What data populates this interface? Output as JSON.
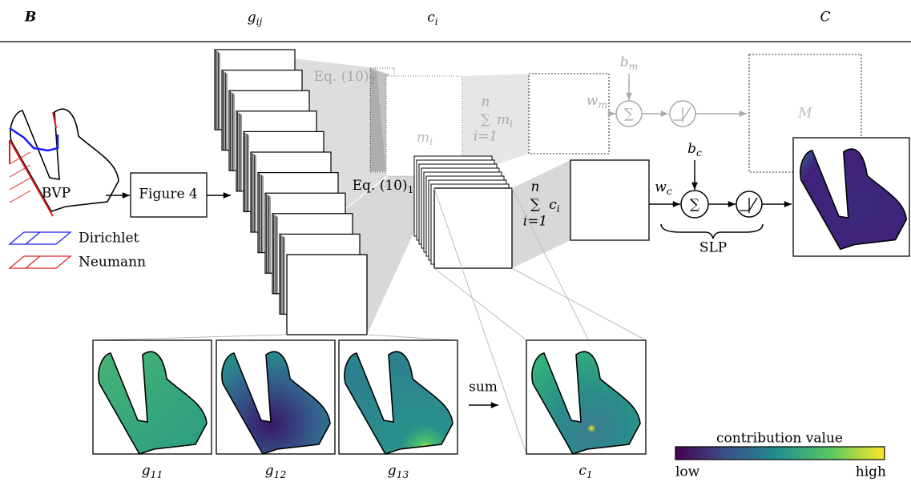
{
  "header": {
    "left": "B",
    "col1": {
      "base": "g",
      "sub": "ij"
    },
    "col2": {
      "base": "c",
      "sub": "i"
    },
    "right": "C"
  },
  "bvp": {
    "label": "BVP",
    "legend": [
      "Dirichlet",
      "Neumann"
    ]
  },
  "figure_box": "Figure 4",
  "equations": {
    "eq2": {
      "base": "Eq. (10)",
      "sub": "2"
    },
    "eq1": {
      "base": "Eq. (10)",
      "sub": "1"
    }
  },
  "mass_branch": {
    "term": {
      "base": "m",
      "sub": "i"
    },
    "sum": {
      "symbol": "∑",
      "upper": "n",
      "lower": "i=1",
      "term": {
        "base": "m",
        "sub": "i"
      }
    },
    "bias": {
      "base": "b",
      "sub": "m"
    },
    "weight": {
      "base": "w",
      "sub": "m"
    },
    "node_symbol": "∑",
    "output": "M"
  },
  "contribution_branch": {
    "sum": {
      "symbol": "∑",
      "upper": "n",
      "lower": "i=1",
      "term": {
        "base": "c",
        "sub": "i"
      }
    },
    "bias": {
      "base": "b",
      "sub": "c"
    },
    "weight": {
      "base": "w",
      "sub": "c"
    },
    "node_symbol": "∑",
    "slp": "SLP"
  },
  "panels": [
    {
      "base": "g",
      "sub": "11"
    },
    {
      "base": "g",
      "sub": "12"
    },
    {
      "base": "g",
      "sub": "13"
    }
  ],
  "sum_arrow": "sum",
  "c_panel": {
    "base": "c",
    "sub": "1"
  },
  "colorbar": {
    "title": "contribution value",
    "low": "low",
    "high": "high"
  }
}
